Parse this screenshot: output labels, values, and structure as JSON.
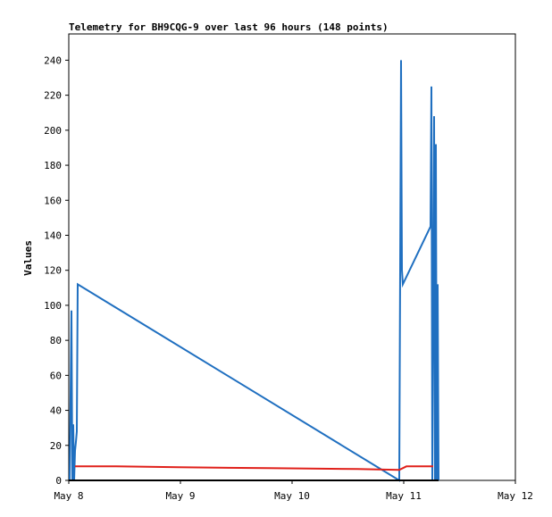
{
  "chart_data": {
    "type": "line",
    "title": "Telemetry for BH9CQG-9 over last 96 hours (148 points)",
    "y_label": "Values",
    "xlim": [
      8,
      12
    ],
    "xticks": [
      {
        "value": 8,
        "label": "May 8"
      },
      {
        "value": 9,
        "label": "May 9"
      },
      {
        "value": 10,
        "label": "May 10"
      },
      {
        "value": 11,
        "label": "May 11"
      },
      {
        "value": 12,
        "label": "May 12"
      }
    ],
    "ylim": [
      0,
      255
    ],
    "yticks": [
      0,
      20,
      40,
      60,
      80,
      100,
      120,
      140,
      160,
      180,
      200,
      220,
      240
    ],
    "series": [
      {
        "color": "#1f6fc0",
        "x": [
          8.008,
          8.024,
          8.032,
          8.04,
          8.048,
          8.056,
          8.064,
          8.072,
          8.08,
          10.96,
          10.976,
          10.984,
          10.992,
          11.24,
          11.248,
          11.256,
          11.264,
          11.272,
          11.28,
          11.288,
          11.296,
          11.304,
          11.312
        ],
        "values": [
          0,
          97,
          0,
          32,
          0,
          17,
          22,
          28,
          112,
          0,
          240,
          120,
          112,
          145,
          225,
          0,
          105,
          208,
          0,
          192,
          0,
          112,
          0
        ]
      },
      {
        "color": "#e0201a",
        "x": [
          8.056,
          8.08,
          8.424,
          8.984,
          9.784,
          10.584,
          10.96,
          11.024,
          11.264
        ],
        "values": [
          8,
          8,
          8,
          7.5,
          7,
          6.5,
          6,
          8,
          8
        ]
      },
      {
        "color": "#000000",
        "x": [
          8.0,
          11.312
        ],
        "values": [
          0,
          0
        ]
      }
    ]
  }
}
